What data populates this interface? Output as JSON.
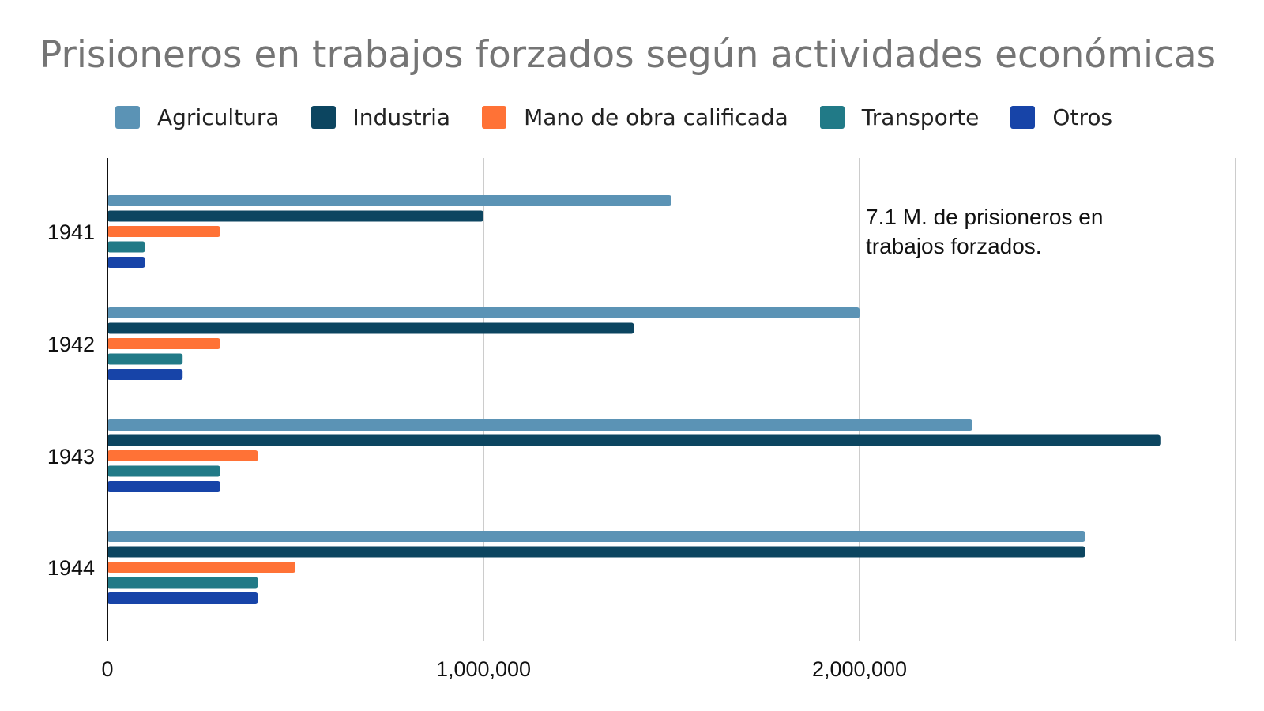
{
  "chart_data": {
    "type": "bar",
    "orientation": "horizontal",
    "title": "Prisioneros en trabajos forzados según actividades económicas",
    "categories": [
      "1941",
      "1942",
      "1943",
      "1944"
    ],
    "series": [
      {
        "name": "Agricultura",
        "color": "#5b93b5",
        "values": [
          1500000,
          2000000,
          2300000,
          2600000
        ]
      },
      {
        "name": "Industria",
        "color": "#0c4560",
        "values": [
          1000000,
          1400000,
          2800000,
          2600000
        ]
      },
      {
        "name": "Mano de obra calificada",
        "color": "#ff7236",
        "values": [
          300000,
          300000,
          400000,
          500000
        ]
      },
      {
        "name": "Transporte",
        "color": "#217a87",
        "values": [
          100000,
          200000,
          300000,
          400000
        ]
      },
      {
        "name": "Otros",
        "color": "#1744a8",
        "values": [
          100000,
          200000,
          300000,
          400000
        ]
      }
    ],
    "xlim": [
      0,
      3000000
    ],
    "xticks": [
      "0",
      "1,000,000",
      "2,000,000"
    ],
    "grid": true,
    "legend": "top",
    "annotation": [
      "7.1 M. de prisioneros en",
      "trabajos forzados."
    ]
  }
}
